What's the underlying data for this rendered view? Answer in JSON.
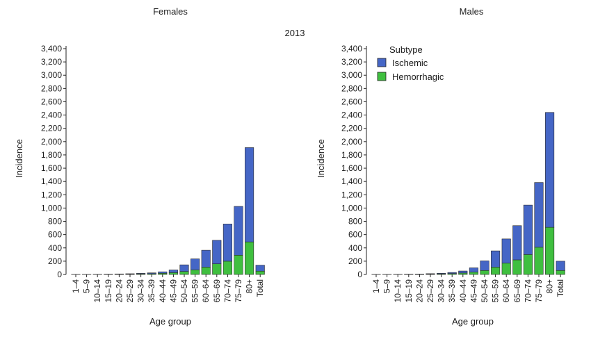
{
  "figure": {
    "year": "2013",
    "legend": {
      "title": "Subtype",
      "items": [
        "Ischemic",
        "Hemorrhagic"
      ]
    }
  },
  "colors": {
    "ischemic": "#4566c6",
    "hemorrhagic": "#3fbf3f"
  },
  "chart_data": [
    {
      "type": "bar",
      "stacked": true,
      "title": "Females",
      "xlabel": "Age group",
      "ylabel": "Incidence",
      "ylim": [
        0,
        3400
      ],
      "yticks": [
        0,
        200,
        400,
        600,
        800,
        1000,
        1200,
        1400,
        1600,
        1800,
        2000,
        2200,
        2400,
        2600,
        2800,
        3000,
        3200,
        3400
      ],
      "ytick_labels": [
        "0",
        "200",
        "400",
        "600",
        "800",
        "1,000",
        "1,200",
        "1,400",
        "1,600",
        "1,800",
        "2,000",
        "2,200",
        "2,400",
        "2,600",
        "2,800",
        "3,000",
        "3,200",
        "3,400"
      ],
      "categories": [
        "1–4",
        "5–9",
        "10–14",
        "15–19",
        "20–24",
        "25–29",
        "30–34",
        "35–39",
        "40–44",
        "45–49",
        "50–54",
        "55–59",
        "60–64",
        "65–69",
        "70–74",
        "75–79",
        "80+",
        "Total"
      ],
      "series": [
        {
          "name": "Hemorrhagic",
          "values": [
            1,
            1,
            2,
            3,
            5,
            6,
            9,
            12,
            18,
            28,
            45,
            70,
            110,
            160,
            200,
            290,
            490,
            50
          ]
        },
        {
          "name": "Ischemic",
          "values": [
            1,
            1,
            1,
            2,
            3,
            5,
            8,
            12,
            22,
            40,
            100,
            165,
            255,
            355,
            560,
            735,
            1420,
            90
          ]
        }
      ]
    },
    {
      "type": "bar",
      "stacked": true,
      "title": "Males",
      "xlabel": "Age group",
      "ylabel": "Incidence",
      "ylim": [
        0,
        3400
      ],
      "yticks": [
        0,
        200,
        400,
        600,
        800,
        1000,
        1200,
        1400,
        1600,
        1800,
        2000,
        2200,
        2400,
        2600,
        2800,
        3000,
        3200,
        3400
      ],
      "ytick_labels": [
        "0",
        "200",
        "400",
        "600",
        "800",
        "1,000",
        "1,200",
        "1,400",
        "1,600",
        "1,800",
        "2,000",
        "2,200",
        "2,400",
        "2,600",
        "2,800",
        "3,000",
        "3,200",
        "3,400"
      ],
      "categories": [
        "1–4",
        "5–9",
        "10–14",
        "15–19",
        "20–24",
        "25–29",
        "30–34",
        "35–39",
        "40–44",
        "45–49",
        "50–54",
        "55–59",
        "60–64",
        "65–69",
        "70–74",
        "75–79",
        "80+",
        "Total"
      ],
      "series": [
        {
          "name": "Hemorrhagic",
          "values": [
            1,
            1,
            2,
            3,
            4,
            6,
            9,
            14,
            22,
            35,
            60,
            110,
            170,
            220,
            300,
            410,
            710,
            60
          ]
        },
        {
          "name": "Ischemic",
          "values": [
            1,
            1,
            1,
            2,
            3,
            6,
            9,
            16,
            30,
            65,
            145,
            245,
            365,
            515,
            745,
            975,
            1730,
            140
          ]
        }
      ]
    }
  ]
}
